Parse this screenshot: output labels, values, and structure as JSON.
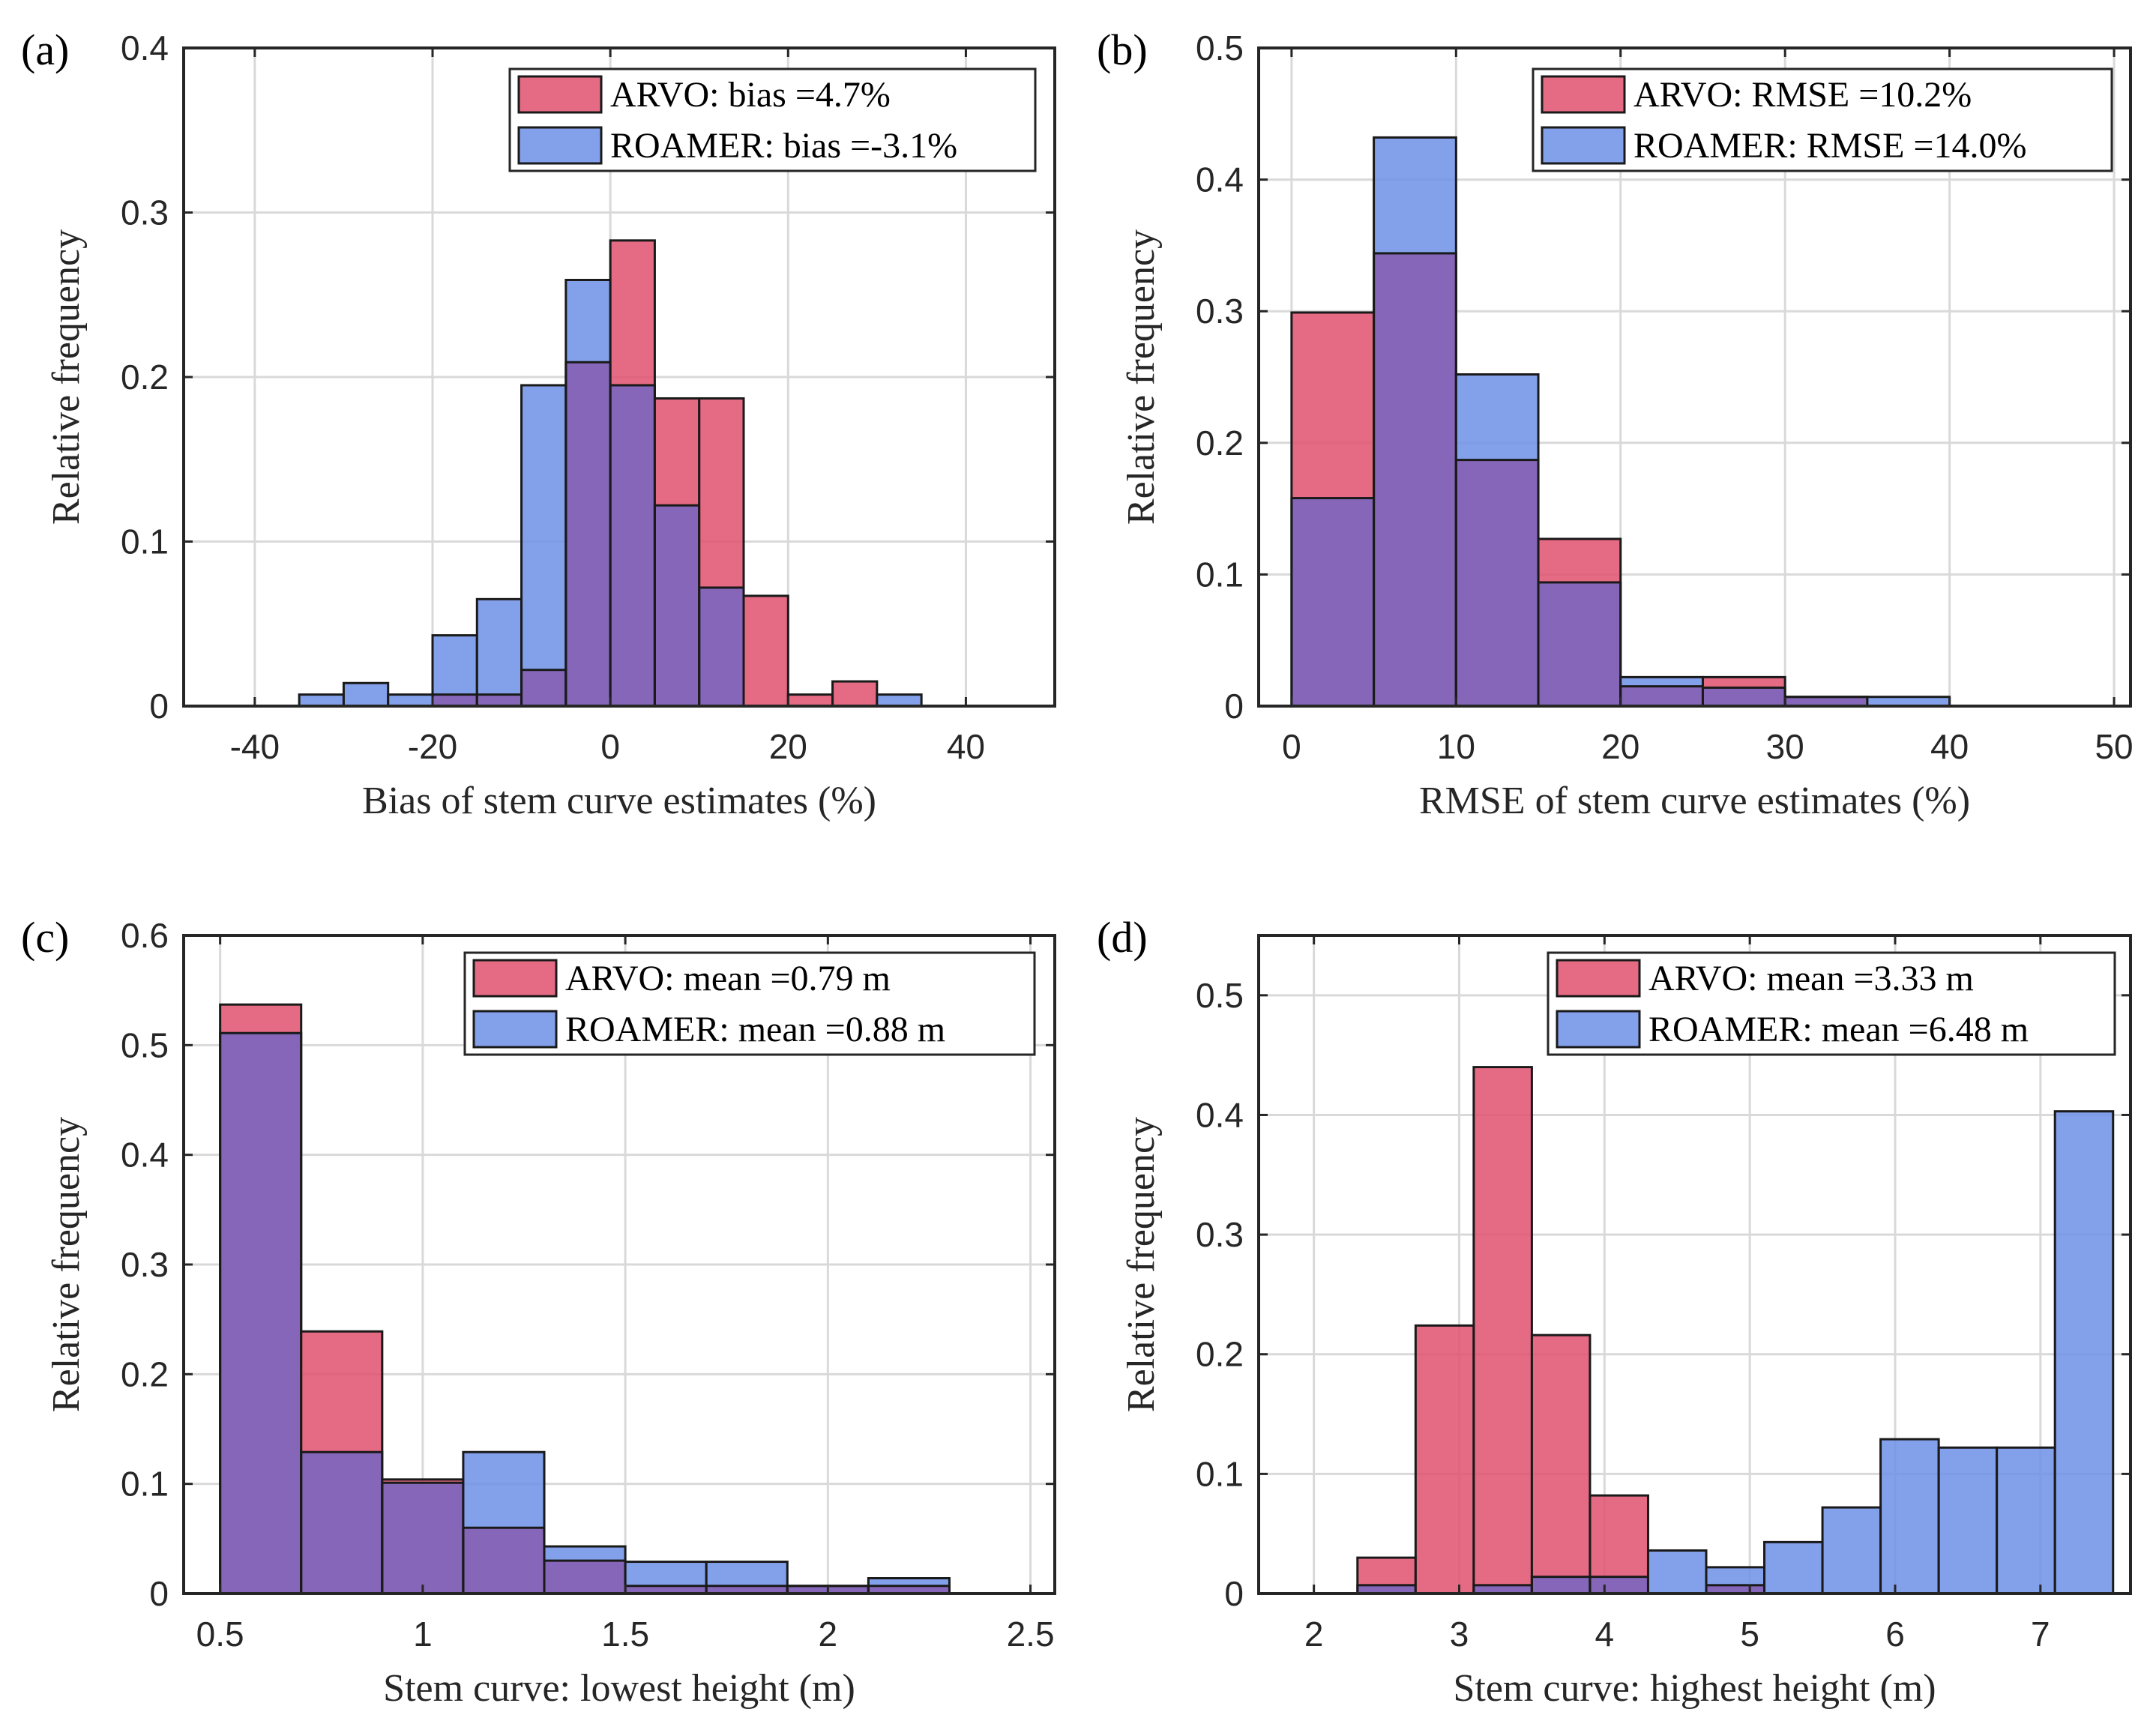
{
  "chart_data": [
    {
      "type": "bar",
      "panel": "(a)",
      "xlabel": "Bias of stem curve estimates (%)",
      "ylabel": "Relative frequency",
      "xlim": [
        -48,
        50
      ],
      "ylim": [
        0,
        0.4
      ],
      "xticks": [
        -40,
        -20,
        0,
        20,
        40
      ],
      "xtick_labels": [
        "-40",
        "-20",
        "0",
        "20",
        "40"
      ],
      "yticks": [
        0,
        0.1,
        0.2,
        0.3,
        0.4
      ],
      "ytick_labels": [
        "0",
        "0.1",
        "0.2",
        "0.3",
        "0.4"
      ],
      "legend_position": "top-right",
      "grid": true,
      "bin_edges": [
        -45,
        -40,
        -35,
        -30,
        -25,
        -20,
        -15,
        -10,
        -5,
        0,
        5,
        10,
        15,
        20,
        25,
        30,
        35,
        40,
        45
      ],
      "series": [
        {
          "name": "ROAMER",
          "legend": "ROAMER: bias =-3.1%",
          "color": "#6d8fe6",
          "values": [
            0,
            0,
            0.007,
            0.014,
            0.007,
            0.043,
            0.065,
            0.195,
            0.259,
            0.195,
            0.122,
            0.072,
            0,
            0,
            0,
            0.007,
            0,
            0
          ]
        },
        {
          "name": "ARVO",
          "legend": "ARVO: bias =4.7%",
          "color": "#e0506e",
          "values": [
            0,
            0,
            0,
            0,
            0,
            0.007,
            0.007,
            0.022,
            0.209,
            0.283,
            0.187,
            0.187,
            0.067,
            0.007,
            0.015,
            0,
            0,
            0
          ]
        }
      ]
    },
    {
      "type": "bar",
      "panel": "(b)",
      "xlabel": "RMSE of stem curve estimates (%)",
      "ylabel": "Relative frequency",
      "xlim": [
        -2,
        51
      ],
      "ylim": [
        0,
        0.5
      ],
      "xticks": [
        0,
        10,
        20,
        30,
        40,
        50
      ],
      "xtick_labels": [
        "0",
        "10",
        "20",
        "30",
        "40",
        "50"
      ],
      "yticks": [
        0,
        0.1,
        0.2,
        0.3,
        0.4,
        0.5
      ],
      "ytick_labels": [
        "0",
        "0.1",
        "0.2",
        "0.3",
        "0.4",
        "0.5"
      ],
      "legend_position": "top-right",
      "grid": true,
      "bin_edges": [
        0,
        5,
        10,
        15,
        20,
        25,
        30,
        35,
        40,
        45,
        50
      ],
      "series": [
        {
          "name": "ROAMER",
          "legend": "ROAMER: RMSE =14.0%",
          "color": "#6d8fe6",
          "values": [
            0.158,
            0.432,
            0.252,
            0.094,
            0.022,
            0.014,
            0.007,
            0.007,
            0,
            0
          ]
        },
        {
          "name": "ARVO",
          "legend": "ARVO: RMSE =10.2%",
          "color": "#e0506e",
          "values": [
            0.299,
            0.344,
            0.187,
            0.127,
            0.015,
            0.022,
            0.007,
            0,
            0,
            0
          ]
        }
      ]
    },
    {
      "type": "bar",
      "panel": "(c)",
      "xlabel": "Stem curve: lowest height (m)",
      "ylabel": "Relative frequency",
      "xlim": [
        0.41,
        2.56
      ],
      "ylim": [
        0,
        0.6
      ],
      "xticks": [
        0.5,
        1,
        1.5,
        2,
        2.5
      ],
      "xtick_labels": [
        "0.5",
        "1",
        "1.5",
        "2",
        "2.5"
      ],
      "yticks": [
        0,
        0.1,
        0.2,
        0.3,
        0.4,
        0.5,
        0.6
      ],
      "ytick_labels": [
        "0",
        "0.1",
        "0.2",
        "0.3",
        "0.4",
        "0.5",
        "0.6"
      ],
      "legend_position": "top-right",
      "grid": true,
      "bin_edges": [
        0.5,
        0.7,
        0.9,
        1.1,
        1.3,
        1.5,
        1.7,
        1.9,
        2.1,
        2.3,
        2.5
      ],
      "series": [
        {
          "name": "ROAMER",
          "legend": "ROAMER: mean =0.88 m",
          "color": "#6d8fe6",
          "values": [
            0.511,
            0.129,
            0.101,
            0.129,
            0.043,
            0.029,
            0.029,
            0.007,
            0.014,
            0
          ]
        },
        {
          "name": "ARVO",
          "legend": "ARVO: mean =0.79 m",
          "color": "#e0506e",
          "values": [
            0.537,
            0.239,
            0.104,
            0.06,
            0.03,
            0.007,
            0.007,
            0.007,
            0.007,
            0
          ]
        }
      ]
    },
    {
      "type": "bar",
      "panel": "(d)",
      "xlabel": "Stem curve: highest height (m)",
      "ylabel": "Relative frequency",
      "xlim": [
        1.62,
        7.62
      ],
      "ylim": [
        0,
        0.55
      ],
      "xticks": [
        2,
        3,
        4,
        5,
        6,
        7
      ],
      "xtick_labels": [
        "2",
        "3",
        "4",
        "5",
        "6",
        "7"
      ],
      "yticks": [
        0,
        0.1,
        0.2,
        0.3,
        0.4,
        0.5
      ],
      "ytick_labels": [
        "0",
        "0.1",
        "0.2",
        "0.3",
        "0.4",
        "0.5"
      ],
      "legend_position": "top-right",
      "grid": true,
      "bin_edges": [
        1.9,
        2.3,
        2.7,
        3.1,
        3.5,
        3.9,
        4.3,
        4.7,
        5.1,
        5.5,
        5.9,
        6.3,
        6.7,
        7.1,
        7.5
      ],
      "series": [
        {
          "name": "ROAMER",
          "legend": "ROAMER: mean =6.48 m",
          "color": "#6d8fe6",
          "values": [
            0,
            0.007,
            0,
            0.007,
            0.014,
            0.014,
            0.036,
            0.022,
            0.043,
            0.072,
            0.129,
            0.122,
            0.122,
            0.403
          ]
        },
        {
          "name": "ARVO",
          "legend": "ARVO: mean =3.33 m",
          "color": "#e0506e",
          "values": [
            0,
            0.03,
            0.224,
            0.44,
            0.216,
            0.082,
            0,
            0.007,
            0,
            0,
            0,
            0,
            0,
            0
          ]
        }
      ]
    }
  ]
}
